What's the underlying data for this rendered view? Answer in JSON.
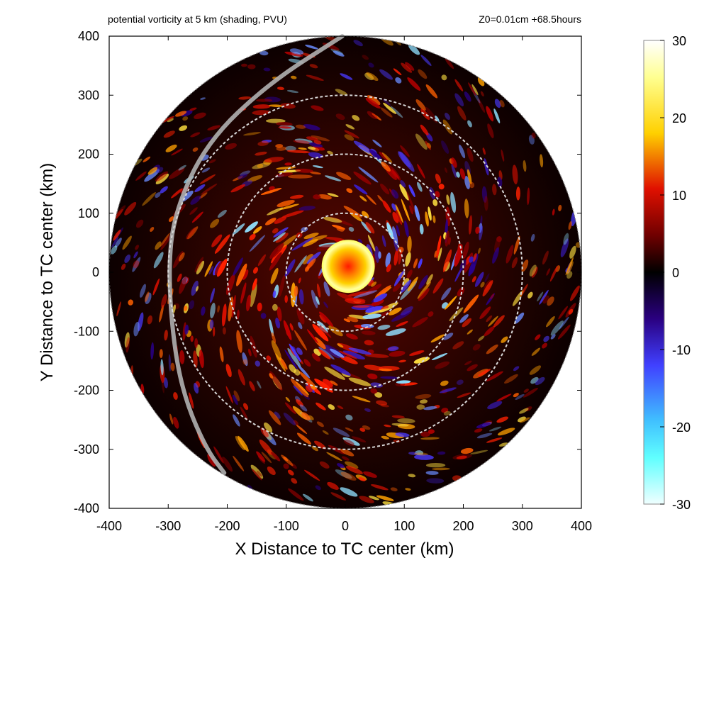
{
  "chart_data": {
    "type": "heatmap",
    "title": "potential vorticity at 5 km (shading, PVU)",
    "annotation": "Z0=0.01cm  +68.5hours",
    "xlabel": "X Distance to TC center (km)",
    "ylabel": "Y Distance to TC center (km)",
    "xlim": [
      -400,
      400
    ],
    "ylim": [
      -400,
      400
    ],
    "x_ticks": [
      "-400",
      "-300",
      "-200",
      "-100",
      "0",
      "100",
      "200",
      "300",
      "400"
    ],
    "y_ticks": [
      "400",
      "300",
      "200",
      "100",
      "0",
      "-100",
      "-200",
      "-300",
      "-400"
    ],
    "domain_radius_km": 400,
    "range_rings_km": [
      100,
      200,
      300
    ],
    "colorbar": {
      "min": -30,
      "max": 30,
      "ticks": [
        "30",
        "20",
        "10",
        "0",
        "-10",
        "-20",
        "-30"
      ],
      "colors": [
        "#ffffff",
        "#5fffff",
        "#4040ff",
        "#000000",
        "#c00000",
        "#ffb000",
        "#ffffc8"
      ]
    },
    "features": {
      "core": {
        "x_km": 5,
        "y_km": 10,
        "radius_km": 45,
        "pv_pvu": 30
      },
      "curve_track_km": [
        [
          -5,
          400
        ],
        [
          -130,
          320
        ],
        [
          -235,
          220
        ],
        [
          -290,
          100
        ],
        [
          -300,
          0
        ],
        [
          -290,
          -130
        ],
        [
          -270,
          -220
        ],
        [
          -235,
          -300
        ],
        [
          -205,
          -340
        ]
      ]
    }
  }
}
